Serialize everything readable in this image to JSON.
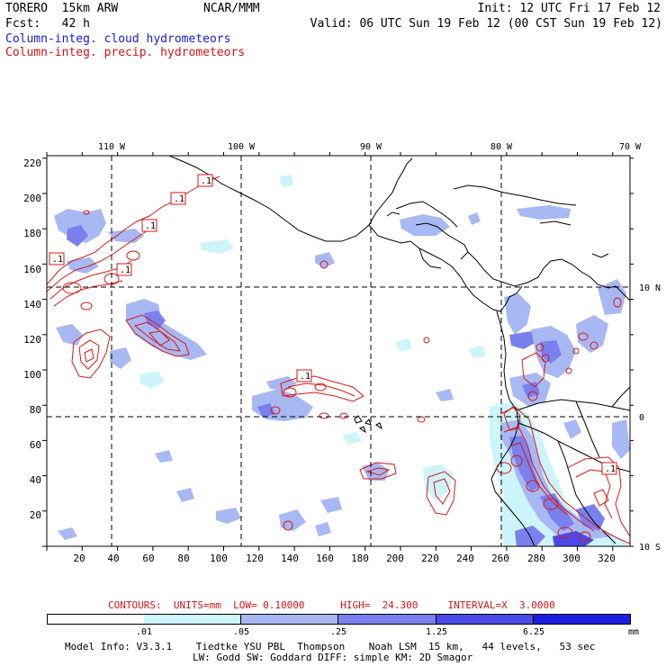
{
  "header": {
    "model_title": "TORERO  15km ARW",
    "org": "NCAR/MMM",
    "init": "Init: 12 UTC Fri 17 Feb 12",
    "fcst": "Fcst:   42 h",
    "valid": "Valid: 06 UTC Sun 19 Feb 12 (00 CST Sun 19 Feb 12)",
    "legend_blue": "Column-integ. cloud hydrometeors",
    "legend_red": "Column-integ. precip. hydrometeors"
  },
  "map": {
    "top_lon_labels": [
      "110 W",
      "100 W",
      "90 W",
      "80 W",
      "70 W"
    ],
    "right_lat_labels": [
      "10 N",
      "0",
      "10 S"
    ],
    "left_y_labels": [
      "220",
      "200",
      "180",
      "160",
      "140",
      "120",
      "100",
      "80",
      "60",
      "40",
      "20"
    ],
    "bottom_x_labels": [
      "20",
      "40",
      "60",
      "80",
      "100",
      "120",
      "140",
      "160",
      "180",
      "200",
      "220",
      "240",
      "260",
      "280",
      "300",
      "320"
    ],
    "contour_labels": [
      ".1",
      ".1",
      ".1",
      ".1",
      ".1",
      ".1",
      ".1"
    ]
  },
  "contour_info": {
    "text": "CONTOURS:  UNITS=mm  LOW= 0.10000      HIGH=  24.300     INTERVAL=X  3.0000"
  },
  "colorbar": {
    "ticks": [
      ".01",
      ".05",
      ".25",
      "1.25",
      "6.25"
    ],
    "unit": "mm",
    "colors": [
      "#ffffff",
      "#ccf4fa",
      "#a8b8f2",
      "#7a80ee",
      "#4a4ae6",
      "#1e1ee0"
    ]
  },
  "footer": {
    "line1": "Model Info: V3.3.1    Tiedtke YSU PBL  Thompson    Noah LSM  15 km,   44 levels,   53 sec",
    "line2": "LW: Godd SW: Goddard DIFF: simple KM: 2D Smagor"
  }
}
